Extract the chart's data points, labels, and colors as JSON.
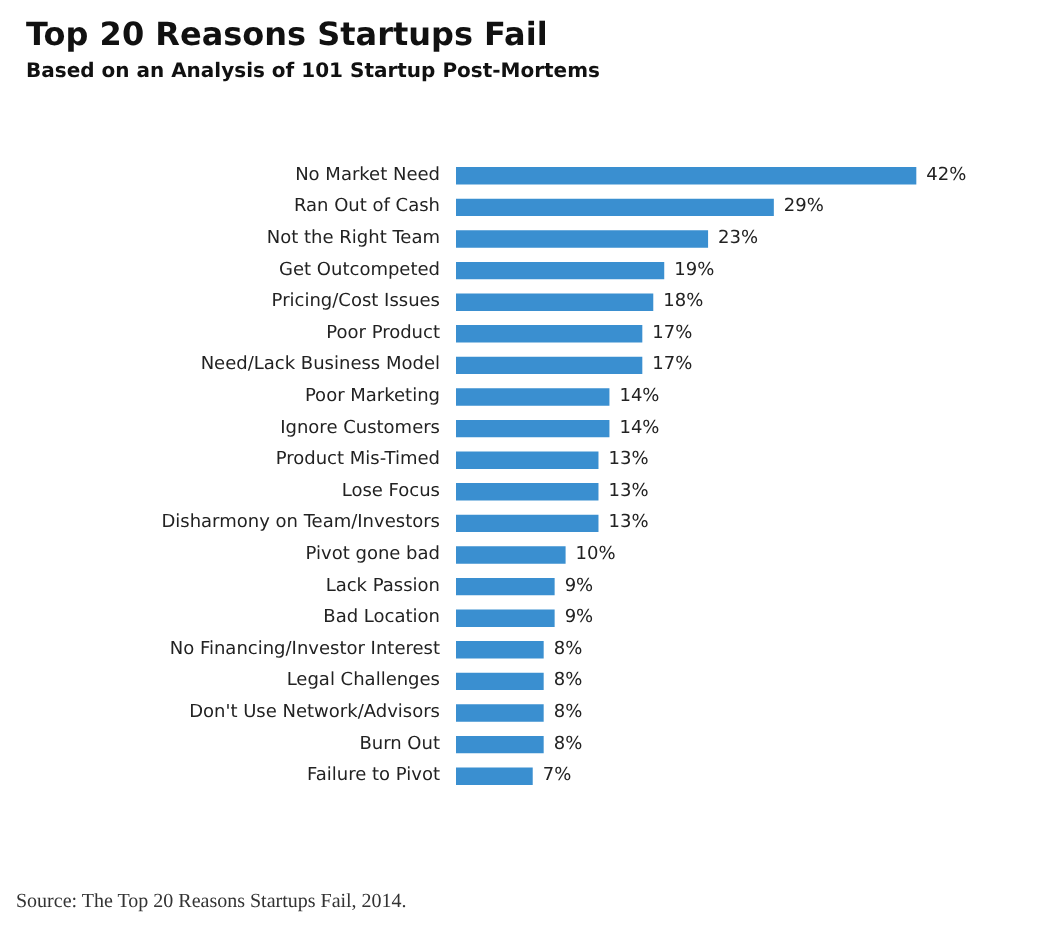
{
  "chart_data": {
    "type": "bar",
    "orientation": "horizontal",
    "title": "Top 20 Reasons Startups Fail",
    "subtitle": "Based on an Analysis of 101 Startup Post-Mortems",
    "categories": [
      "No Market Need",
      "Ran Out of Cash",
      "Not the Right Team",
      "Get Outcompeted",
      "Pricing/Cost Issues",
      "Poor Product",
      "Need/Lack Business Model",
      "Poor Marketing",
      "Ignore Customers",
      "Product Mis-Timed",
      "Lose Focus",
      "Disharmony on Team/Investors",
      "Pivot gone bad",
      "Lack Passion",
      "Bad Location",
      "No Financing/Investor Interest",
      "Legal Challenges",
      "Don't Use Network/Advisors",
      "Burn Out",
      "Failure to Pivot"
    ],
    "values": [
      42,
      29,
      23,
      19,
      18,
      17,
      17,
      14,
      14,
      13,
      13,
      13,
      10,
      9,
      9,
      8,
      8,
      8,
      8,
      7
    ],
    "value_labels": [
      "42%",
      "29%",
      "23%",
      "19%",
      "18%",
      "17%",
      "17%",
      "14%",
      "14%",
      "13%",
      "13%",
      "13%",
      "10%",
      "9%",
      "9%",
      "8%",
      "8%",
      "8%",
      "8%",
      "7%"
    ],
    "color": "#3a8fd0",
    "tick_labels": "y",
    "annotations": [
      "Source: The Top 20 Reasons Startups Fail, 2014."
    ]
  }
}
